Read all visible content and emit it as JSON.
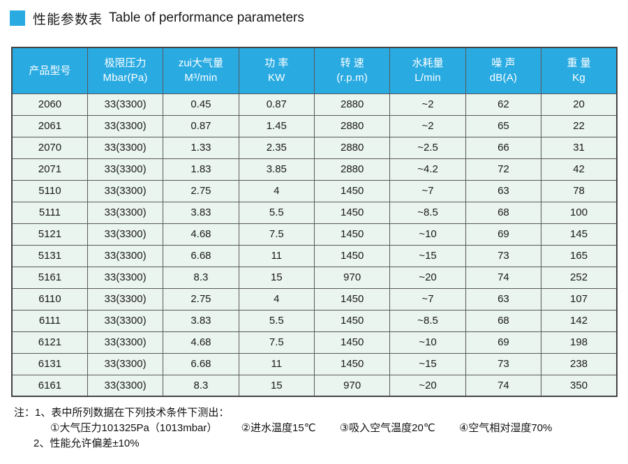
{
  "title": {
    "zh": "性能参数表",
    "en": "Table of performance parameters"
  },
  "colors": {
    "accent": "#29abe2",
    "header_bg": "#29abe2",
    "header_text": "#ffffff",
    "row_bg": "#eaf5ef",
    "border": "#58595b",
    "text": "#1a1a1a"
  },
  "table": {
    "headers": [
      {
        "line1": "产品型号",
        "line2": ""
      },
      {
        "line1": "极限压力",
        "line2": "Mbar(Pa)"
      },
      {
        "line1": "zui大气量",
        "line2": "M³/min"
      },
      {
        "line1": "功 率",
        "line2": "KW"
      },
      {
        "line1": "转 速",
        "line2": "(r.p.m)"
      },
      {
        "line1": "水耗量",
        "line2": "L/min"
      },
      {
        "line1": "噪 声",
        "line2": "dB(A)"
      },
      {
        "line1": "重 量",
        "line2": "Kg"
      }
    ],
    "rows": [
      [
        "2060",
        "33(3300)",
        "0.45",
        "0.87",
        "2880",
        "~2",
        "62",
        "20"
      ],
      [
        "2061",
        "33(3300)",
        "0.87",
        "1.45",
        "2880",
        "~2",
        "65",
        "22"
      ],
      [
        "2070",
        "33(3300)",
        "1.33",
        "2.35",
        "2880",
        "~2.5",
        "66",
        "31"
      ],
      [
        "2071",
        "33(3300)",
        "1.83",
        "3.85",
        "2880",
        "~4.2",
        "72",
        "42"
      ],
      [
        "5110",
        "33(3300)",
        "2.75",
        "4",
        "1450",
        "~7",
        "63",
        "78"
      ],
      [
        "5111",
        "33(3300)",
        "3.83",
        "5.5",
        "1450",
        "~8.5",
        "68",
        "100"
      ],
      [
        "5121",
        "33(3300)",
        "4.68",
        "7.5",
        "1450",
        "~10",
        "69",
        "145"
      ],
      [
        "5131",
        "33(3300)",
        "6.68",
        "11",
        "1450",
        "~15",
        "73",
        "165"
      ],
      [
        "5161",
        "33(3300)",
        "8.3",
        "15",
        "970",
        "~20",
        "74",
        "252"
      ],
      [
        "6110",
        "33(3300)",
        "2.75",
        "4",
        "1450",
        "~7",
        "63",
        "107"
      ],
      [
        "6111",
        "33(3300)",
        "3.83",
        "5.5",
        "1450",
        "~8.5",
        "68",
        "142"
      ],
      [
        "6121",
        "33(3300)",
        "4.68",
        "7.5",
        "1450",
        "~10",
        "69",
        "198"
      ],
      [
        "6131",
        "33(3300)",
        "6.68",
        "11",
        "1450",
        "~15",
        "73",
        "238"
      ],
      [
        "6161",
        "33(3300)",
        "8.3",
        "15",
        "970",
        "~20",
        "74",
        "350"
      ]
    ]
  },
  "notes": {
    "line1": "注：1、表中所列数据在下列技术条件下测出：",
    "conditions": [
      "①大气压力101325Pa（1013mbar）",
      "②进水温度15℃",
      "③吸入空气温度20℃",
      "④空气相对湿度70%"
    ],
    "line3": "2、性能允许偏差±10%"
  }
}
